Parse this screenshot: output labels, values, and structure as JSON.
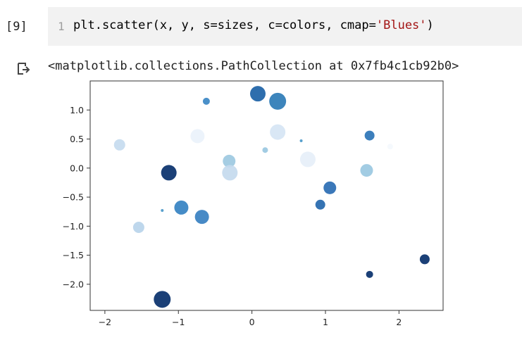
{
  "cell": {
    "execution_count": "[9]",
    "line_number": "1",
    "code_prefix": "plt.scatter(x, y, s=sizes, c=colors, cmap=",
    "code_string": "'Blues'",
    "code_suffix": ")"
  },
  "output": {
    "icon": "output-arrow-icon",
    "text": "<matplotlib.collections.PathCollection at 0x7fb4c1cb92b0>"
  },
  "chart_data": {
    "type": "scatter",
    "colormap": "Blues",
    "xlim": [
      -2.2,
      2.6
    ],
    "ylim": [
      -2.45,
      1.5
    ],
    "x_ticks": [
      -2,
      -1,
      0,
      1,
      2
    ],
    "x_tick_labels": [
      "−2",
      "−1",
      "0",
      "1",
      "2"
    ],
    "y_ticks": [
      1.0,
      0.5,
      0.0,
      -0.5,
      -1.0,
      -1.5,
      -2.0
    ],
    "y_tick_labels": [
      "1.0",
      "0.5",
      "0.0",
      "−0.5",
      "−1.0",
      "−1.5",
      "−2.0"
    ],
    "points": [
      {
        "x": 0.08,
        "y": 1.28,
        "r": 11,
        "c": "#1c62a6"
      },
      {
        "x": 0.35,
        "y": 1.15,
        "r": 12,
        "c": "#2c7bb6"
      },
      {
        "x": -0.62,
        "y": 1.15,
        "r": 5,
        "c": "#3b87c4"
      },
      {
        "x": 0.35,
        "y": 0.62,
        "r": 11,
        "c": "#d6e5f4"
      },
      {
        "x": -0.74,
        "y": 0.55,
        "r": 10,
        "c": "#eaf2fb"
      },
      {
        "x": -1.8,
        "y": 0.4,
        "r": 8,
        "c": "#c6dbef"
      },
      {
        "x": 1.6,
        "y": 0.56,
        "r": 7,
        "c": "#2b74b6"
      },
      {
        "x": 0.67,
        "y": 0.47,
        "r": 2,
        "c": "#4a98c9"
      },
      {
        "x": 0.18,
        "y": 0.31,
        "r": 4,
        "c": "#9ac8e1"
      },
      {
        "x": 1.88,
        "y": 0.37,
        "r": 4,
        "c": "#f4f8fd"
      },
      {
        "x": 0.76,
        "y": 0.15,
        "r": 11,
        "c": "#e6eff9"
      },
      {
        "x": -0.31,
        "y": 0.12,
        "r": 9,
        "c": "#9dc9e1"
      },
      {
        "x": -0.3,
        "y": -0.08,
        "r": 11,
        "c": "#c4daee"
      },
      {
        "x": -1.13,
        "y": -0.08,
        "r": 11,
        "c": "#08306b"
      },
      {
        "x": 1.56,
        "y": -0.04,
        "r": 9,
        "c": "#9ac8e1"
      },
      {
        "x": 1.06,
        "y": -0.34,
        "r": 9,
        "c": "#2a6db3"
      },
      {
        "x": 0.93,
        "y": -0.63,
        "r": 7,
        "c": "#2467ac"
      },
      {
        "x": -1.22,
        "y": -0.73,
        "r": 2,
        "c": "#4a98c9"
      },
      {
        "x": -0.96,
        "y": -0.68,
        "r": 10,
        "c": "#3582c2"
      },
      {
        "x": -0.68,
        "y": -0.84,
        "r": 10,
        "c": "#3780c1"
      },
      {
        "x": -1.54,
        "y": -1.02,
        "r": 8,
        "c": "#b8d4ea"
      },
      {
        "x": 2.35,
        "y": -1.57,
        "r": 7,
        "c": "#08306b"
      },
      {
        "x": 1.6,
        "y": -1.83,
        "r": 5,
        "c": "#08306b"
      },
      {
        "x": -1.22,
        "y": -2.26,
        "r": 12,
        "c": "#08306b"
      }
    ]
  }
}
